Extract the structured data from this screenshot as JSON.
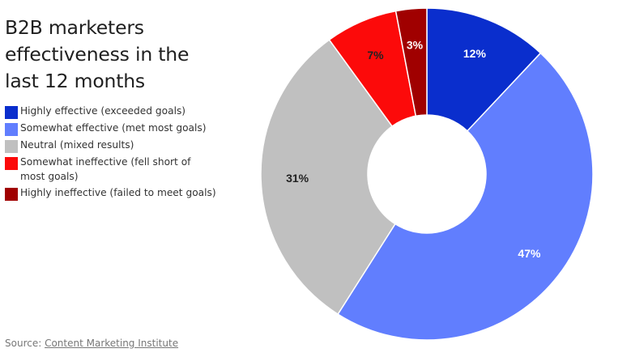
{
  "chart_data": {
    "type": "pie",
    "title": "B2B marketers effectiveness in the last 12 months",
    "categories": [
      "Highly effective (exceeded goals)",
      "Somewhat effective (met most goals)",
      "Neutral (mixed results)",
      "Somewhat ineffective (fell short of most goals)",
      "Highly ineffective (failed to meet goals)"
    ],
    "values": [
      12,
      47,
      31,
      7,
      3
    ],
    "value_labels": [
      "12%",
      "47%",
      "31%",
      "7%",
      "3%"
    ],
    "colors": [
      "#0a2ecd",
      "#617efe",
      "#c0c0c0",
      "#fc0a0a",
      "#a00000"
    ],
    "label_colors": [
      "#ffffff",
      "#ffffff",
      "#222222",
      "#222222",
      "#ffffff"
    ],
    "donut": true,
    "legend_position": "left"
  },
  "source": {
    "label": "Source: ",
    "link_text": "Content Marketing Institute"
  }
}
